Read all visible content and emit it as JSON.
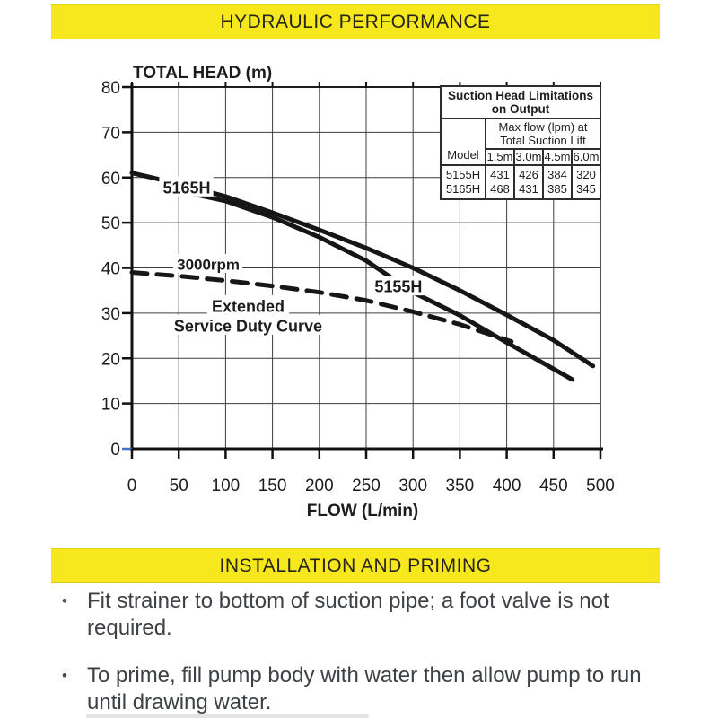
{
  "header": {
    "title": "HYDRAULIC PERFORMANCE"
  },
  "section2": {
    "title": "INSTALLATION AND PRIMING"
  },
  "bullet_char": "•",
  "bullets": [
    "Fit strainer to bottom of suction pipe; a foot valve is not required.",
    "To prime, fill pump body with water then allow pump to run until drawing water."
  ],
  "colors": {
    "accent_yellow": "#f7e71d",
    "body_text": "#3d4045",
    "curve_black": "#161616",
    "grid": "#3d3d3d",
    "origin_tick_blue": "#4472c4"
  },
  "suction_table": {
    "title": [
      "Suction Head Limitations",
      "on Output"
    ],
    "subtitle": [
      "Max flow (lpm) at",
      "Total Suction Lift"
    ],
    "col_headers": [
      "Model",
      "1.5m",
      "3.0m",
      "4.5m",
      "6.0m"
    ],
    "rows": [
      {
        "model": "5155H",
        "values": [
          "431",
          "426",
          "384",
          "320"
        ]
      },
      {
        "model": "5165H",
        "values": [
          "468",
          "431",
          "385",
          "345"
        ]
      }
    ]
  },
  "chart_data": {
    "type": "line",
    "title": "TOTAL HEAD (m)",
    "xlabel": "FLOW (L/min)",
    "ylabel": "TOTAL HEAD (m)",
    "xlim": [
      0,
      500
    ],
    "ylim": [
      0,
      80
    ],
    "x_ticks": [
      0,
      50,
      100,
      150,
      200,
      250,
      300,
      350,
      400,
      450,
      500
    ],
    "y_ticks": [
      0,
      10,
      20,
      30,
      40,
      50,
      60,
      70,
      80
    ],
    "grid": true,
    "legend_position": "none",
    "series": [
      {
        "name": "5165H",
        "style": "solid",
        "points": [
          [
            0,
            61
          ],
          [
            50,
            58.6
          ],
          [
            100,
            55.8
          ],
          [
            150,
            52.2
          ],
          [
            200,
            48.4
          ],
          [
            250,
            44.4
          ],
          [
            300,
            40
          ],
          [
            350,
            35
          ],
          [
            400,
            29.6
          ],
          [
            450,
            24
          ],
          [
            492,
            18.3
          ]
        ]
      },
      {
        "name": "5155H",
        "style": "solid",
        "points": [
          [
            46,
            57.2
          ],
          [
            100,
            54.8
          ],
          [
            150,
            51.2
          ],
          [
            200,
            46.8
          ],
          [
            250,
            41.6
          ],
          [
            300,
            34.6
          ],
          [
            350,
            29.5
          ],
          [
            400,
            23.5
          ],
          [
            470,
            15.3
          ]
        ]
      },
      {
        "name": "Extended Service Duty Curve 3000rpm",
        "style": "dashed",
        "points": [
          [
            0,
            39
          ],
          [
            50,
            38.2
          ],
          [
            100,
            37.2
          ],
          [
            150,
            36
          ],
          [
            200,
            34.6
          ],
          [
            250,
            32.8
          ],
          [
            300,
            30.3
          ],
          [
            350,
            27.5
          ],
          [
            405,
            23.7
          ]
        ]
      }
    ],
    "annotations": [
      {
        "text": "5165H",
        "x": 33,
        "y": 57.8,
        "anchor": "start",
        "size": 18
      },
      {
        "text": "3000rpm",
        "x": 48,
        "y": 40.8,
        "anchor": "start",
        "size": 17
      },
      {
        "text": "Extended",
        "x": 124,
        "y": 31.6,
        "anchor": "middle",
        "size": 18
      },
      {
        "text": "Service Duty Curve",
        "x": 124,
        "y": 27.2,
        "anchor": "middle",
        "size": 18
      },
      {
        "text": "5155H",
        "x": 259,
        "y": 35.9,
        "anchor": "start",
        "size": 18
      }
    ]
  }
}
